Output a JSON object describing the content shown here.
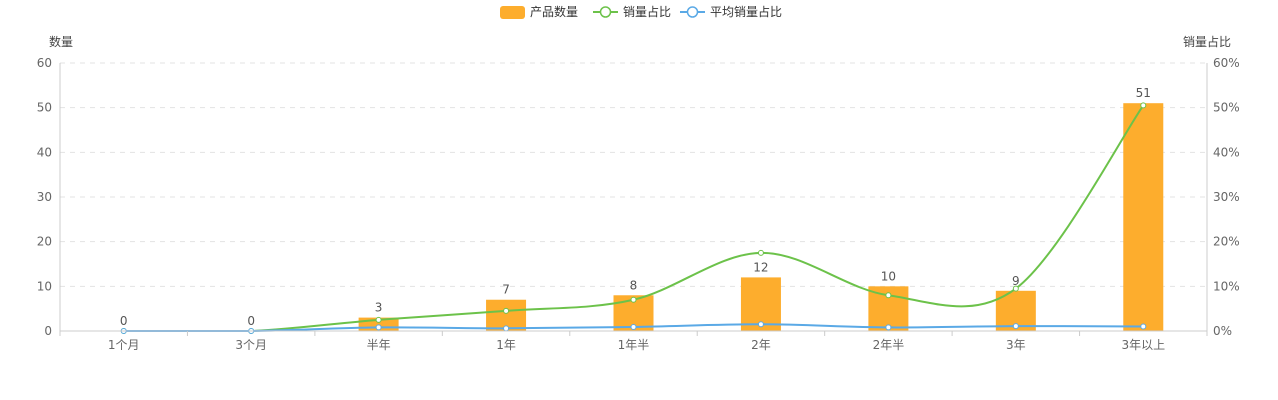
{
  "chart_data": {
    "type": "bar",
    "categories": [
      "1个月",
      "3个月",
      "半年",
      "1年",
      "1年半",
      "2年",
      "2年半",
      "3年",
      "3年以上"
    ],
    "series": [
      {
        "name": "产品数量",
        "type": "bar",
        "axis": "left",
        "color": "#FDAD2D",
        "values": [
          0,
          0,
          3,
          7,
          8,
          12,
          10,
          9,
          51
        ]
      },
      {
        "name": "销量占比",
        "type": "line",
        "axis": "right",
        "color": "#6CC24A",
        "values": [
          0,
          0,
          2.5,
          4.5,
          7,
          17.5,
          8,
          9.5,
          50.5
        ]
      },
      {
        "name": "平均销量占比",
        "type": "line",
        "axis": "right",
        "color": "#5AA9E6",
        "values": [
          0,
          0,
          0.8,
          0.6,
          0.9,
          1.5,
          0.8,
          1.1,
          1.0
        ]
      }
    ],
    "y_left": {
      "title": "数量",
      "min": 0,
      "max": 60,
      "ticks": [
        "0",
        "10",
        "20",
        "30",
        "40",
        "50",
        "60"
      ]
    },
    "y_right": {
      "title": "销量占比",
      "min": 0,
      "max": 60,
      "ticks": [
        "0%",
        "10%",
        "20%",
        "30%",
        "40%",
        "50%",
        "60%"
      ]
    },
    "grid": true,
    "legend_position": "top-center"
  }
}
